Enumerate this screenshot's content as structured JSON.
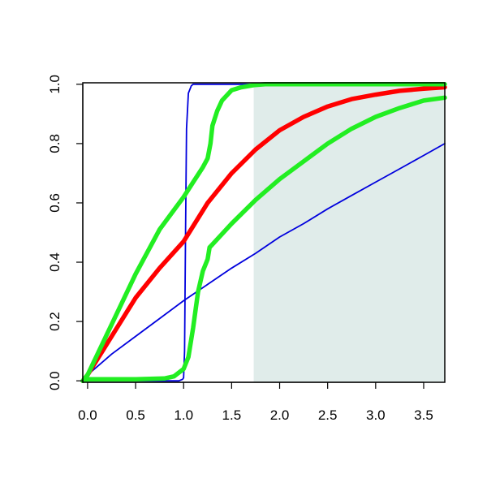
{
  "chart_data": {
    "type": "line",
    "title": "",
    "xlabel": "",
    "ylabel": "",
    "xlim": [
      -0.05,
      3.72
    ],
    "ylim": [
      -0.005,
      1.005
    ],
    "x_ticks": [
      0.0,
      0.5,
      1.0,
      1.5,
      2.0,
      2.5,
      3.0,
      3.5
    ],
    "x_tick_labels": [
      "0.0",
      "0.5",
      "1.0",
      "1.5",
      "2.0",
      "2.5",
      "3.0",
      "3.5"
    ],
    "y_ticks": [
      0.0,
      0.2,
      0.4,
      0.6,
      0.8,
      1.0
    ],
    "y_tick_labels": [
      "0.0",
      "0.2",
      "0.4",
      "0.6",
      "0.8",
      "1.0"
    ],
    "grid": false,
    "legend": "none",
    "shaded_region": {
      "x_from": 1.73,
      "x_to": 3.72,
      "color": "#e0ecea"
    },
    "series": [
      {
        "color": "#0000dd",
        "line": "thin",
        "x": [
          -0.05,
          0.0,
          0.5,
          0.8,
          0.95,
          0.99,
          1.0,
          1.01,
          1.02,
          1.03,
          1.05,
          1.08,
          1.1,
          1.2,
          1.5,
          2.0,
          2.5,
          3.0,
          3.5,
          3.72
        ],
        "y": [
          0.0,
          0.0,
          0.0,
          0.0,
          0.0,
          0.005,
          0.01,
          0.1,
          0.5,
          0.85,
          0.97,
          0.995,
          1.0,
          1.0,
          1.0,
          1.0,
          1.0,
          1.0,
          1.0,
          1.0
        ]
      },
      {
        "color": "#0000dd",
        "line": "thin",
        "x": [
          -0.05,
          0.0,
          0.25,
          0.5,
          0.75,
          1.0,
          1.25,
          1.5,
          1.75,
          2.0,
          2.25,
          2.5,
          2.75,
          3.0,
          3.25,
          3.5,
          3.72
        ],
        "y": [
          0.0,
          0.02,
          0.09,
          0.15,
          0.21,
          0.27,
          0.325,
          0.38,
          0.43,
          0.485,
          0.53,
          0.58,
          0.625,
          0.67,
          0.715,
          0.76,
          0.8
        ]
      },
      {
        "color": "#ff0000",
        "line": "thick",
        "x": [
          -0.05,
          0.0,
          0.25,
          0.5,
          0.75,
          1.0,
          1.25,
          1.5,
          1.75,
          2.0,
          2.25,
          2.5,
          2.75,
          3.0,
          3.25,
          3.5,
          3.72
        ],
        "y": [
          0.0,
          0.02,
          0.15,
          0.28,
          0.38,
          0.47,
          0.6,
          0.7,
          0.78,
          0.845,
          0.89,
          0.925,
          0.95,
          0.965,
          0.978,
          0.985,
          0.99
        ]
      },
      {
        "color": "#22ee22",
        "line": "thick",
        "x": [
          -0.05,
          0.0,
          0.25,
          0.5,
          0.75,
          1.0,
          1.1,
          1.2,
          1.25,
          1.28,
          1.3,
          1.35,
          1.4,
          1.5,
          1.6,
          1.73,
          1.85,
          2.0,
          2.5,
          3.0,
          3.5,
          3.72
        ],
        "y": [
          0.0,
          0.02,
          0.19,
          0.36,
          0.51,
          0.62,
          0.67,
          0.72,
          0.75,
          0.8,
          0.86,
          0.91,
          0.945,
          0.98,
          0.99,
          0.997,
          1.0,
          1.0,
          1.0,
          1.0,
          1.0,
          1.0
        ]
      },
      {
        "color": "#22ee22",
        "line": "thick",
        "x": [
          -0.05,
          0.0,
          0.5,
          0.8,
          0.9,
          1.0,
          1.05,
          1.1,
          1.15,
          1.2,
          1.25,
          1.27,
          1.3,
          1.5,
          1.75,
          2.0,
          2.25,
          2.5,
          2.75,
          3.0,
          3.25,
          3.5,
          3.72
        ],
        "y": [
          0.0,
          0.005,
          0.005,
          0.008,
          0.015,
          0.04,
          0.08,
          0.18,
          0.3,
          0.37,
          0.41,
          0.45,
          0.46,
          0.53,
          0.61,
          0.68,
          0.74,
          0.8,
          0.85,
          0.89,
          0.92,
          0.945,
          0.955
        ]
      }
    ]
  }
}
